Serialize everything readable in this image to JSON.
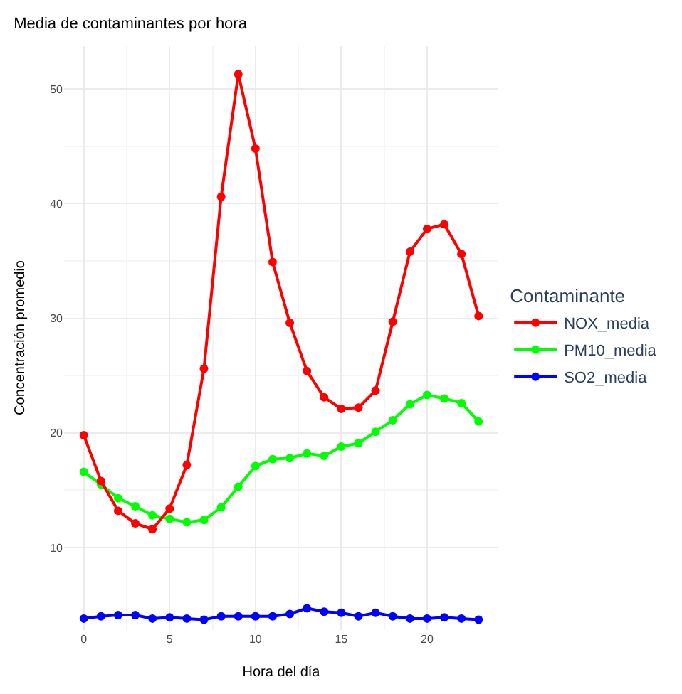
{
  "chart_data": {
    "type": "line",
    "title": "Media de contaminantes por hora",
    "xlabel": "Hora del día",
    "ylabel": "Concentración promedio",
    "legend_title": "Contaminante",
    "x": [
      0,
      1,
      2,
      3,
      4,
      5,
      6,
      7,
      8,
      9,
      10,
      11,
      12,
      13,
      14,
      15,
      16,
      17,
      18,
      19,
      20,
      21,
      22,
      23
    ],
    "series": [
      {
        "name": "NOX_media",
        "color": "#ff0000",
        "values": [
          19.8,
          15.8,
          13.2,
          12.1,
          11.6,
          13.4,
          17.2,
          25.6,
          40.6,
          51.3,
          44.8,
          34.9,
          29.6,
          25.4,
          23.1,
          22.1,
          22.2,
          23.7,
          29.7,
          35.8,
          37.8,
          38.2,
          35.6,
          30.2
        ]
      },
      {
        "name": "PM10_media",
        "color": "#00ff00",
        "values": [
          16.6,
          15.5,
          14.3,
          13.6,
          12.8,
          12.5,
          12.2,
          12.4,
          13.5,
          15.3,
          17.1,
          17.7,
          17.8,
          18.2,
          18.0,
          18.8,
          19.1,
          20.1,
          21.1,
          22.5,
          23.3,
          23.0,
          22.6,
          21.0
        ]
      },
      {
        "name": "SO2_media",
        "color": "#0000ff",
        "values": [
          3.8,
          4.0,
          4.1,
          4.1,
          3.8,
          3.9,
          3.8,
          3.7,
          4.0,
          4.0,
          4.0,
          4.0,
          4.2,
          4.7,
          4.4,
          4.3,
          4.0,
          4.3,
          4.0,
          3.8,
          3.8,
          3.9,
          3.8,
          3.7
        ]
      }
    ],
    "xlim": [
      -1.15,
      24.15
    ],
    "xticks": [
      0,
      5,
      10,
      15,
      20
    ],
    "ylim": [
      2.8,
      53.8
    ],
    "yticks": [
      10,
      20,
      30,
      40,
      50
    ],
    "grid": true,
    "legend": "right",
    "marker": "circle",
    "line_style": "solid"
  }
}
